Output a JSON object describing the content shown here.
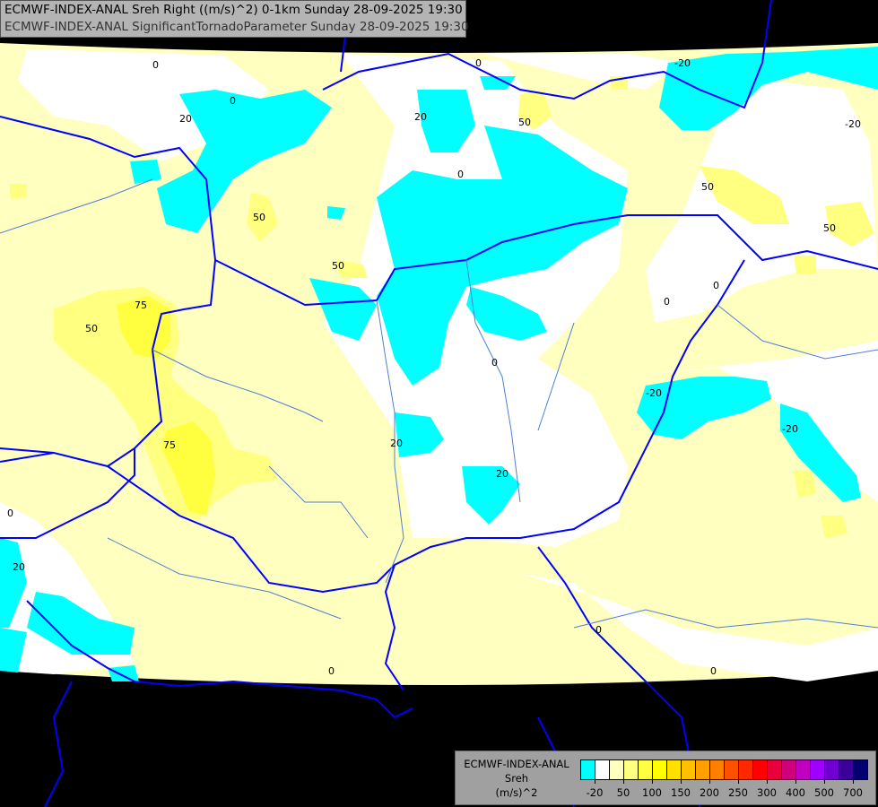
{
  "header": {
    "line1": "ECMWF-INDEX-ANAL Sreh Right ((m/s)^2) 0-1km Sunday 28-09-2025 19:30",
    "line2": "ECMWF-INDEX-ANAL SignificantTornadoParameter Sunday 28-09-2025 19:30"
  },
  "legend": {
    "model": "ECMWF-INDEX-ANAL",
    "variable": "Sreh",
    "unit": "(m/s)^2",
    "colors": [
      "#00ffff",
      "#ffffff",
      "#ffffc0",
      "#ffff80",
      "#ffff40",
      "#ffff00",
      "#ffe000",
      "#ffc000",
      "#ffa000",
      "#ff8000",
      "#ff5000",
      "#ff2800",
      "#ff0000",
      "#e8003c",
      "#d0007c",
      "#c000c0",
      "#a000ff",
      "#7000d0",
      "#3a0098",
      "#000070"
    ],
    "labels": [
      "-20",
      "50",
      "100",
      "150",
      "200",
      "250",
      "300",
      "400",
      "500",
      "700"
    ]
  },
  "map": {
    "colors": {
      "outside": "#000000",
      "cyan": "#00ffff",
      "white": "#ffffff",
      "pale": "#ffffc0",
      "light": "#ffff80",
      "yellow": "#ffff40",
      "border": "#0000ff",
      "river": "#5080d0"
    },
    "contour_labels": [
      "0",
      "20",
      "0",
      "50",
      "50",
      "75",
      "50",
      "75",
      "0",
      "20",
      "0",
      "-20",
      "50",
      "-20",
      "50",
      "0",
      "0",
      "0",
      "-20",
      "20",
      "20",
      "0",
      "0",
      "20",
      "0",
      "0",
      "-20",
      "50"
    ]
  }
}
